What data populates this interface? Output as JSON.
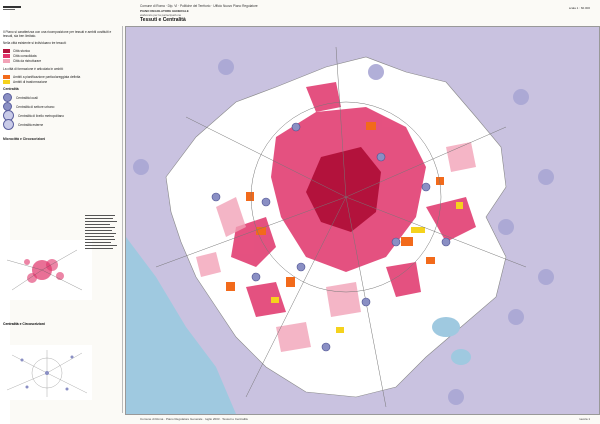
{
  "header": {
    "org": "Comune di Roma · Dip. VI · Politiche del Territorio · Ufficio Nuovo Piano Regolatore",
    "subtitle": "PIANO REGOLATORE GENERALE",
    "subtitle2": "elaborato per la partecipazione",
    "title": "Tessuti e Centralità",
    "scale": "scala 1 : 60.000"
  },
  "legend": {
    "intro": "Il Piano si caratterizza con una ricomposizione per tessuti e ambiti costituiti e tessuti, sia ben limitato.",
    "city_caption": "Nella città esistente si individuano tre tessuti:",
    "city_items": [
      {
        "label": "Città storica",
        "color": "#b3123c"
      },
      {
        "label": "Città consolidata",
        "color": "#e0336a"
      },
      {
        "label": "Città da ristrutturare",
        "color": "#f2a3b8"
      }
    ],
    "transform_caption": "La città di formazione è articolata in ambiti:",
    "transform_items": [
      {
        "label": "Ambiti a pianificazione particolareggiata definita",
        "color": "#f26a1b"
      },
      {
        "label": "Ambiti di trasformazione",
        "color": "#f5d21c"
      }
    ],
    "centrality_caption": "Centralità",
    "centrality_items": [
      {
        "label": "Centralità locali"
      },
      {
        "label": "Centralità di settore urbano"
      },
      {
        "label": "Centralità di livello metropolitano"
      },
      {
        "label": "Centralità esterne"
      }
    ],
    "section1_title": "Microcittà e Circoscrizioni",
    "section2_title": "Centralità e Circoscrizioni"
  },
  "map": {
    "water_color": "#9fc9e0",
    "land_color": "#ffffff",
    "outside_color": "#c9c2e0",
    "centrality_color": "#8a8fc4"
  },
  "footer": {
    "left": "Comune di Roma · Piano Regolatore Generale · luglio 2003 · Tessuti e Centralità",
    "right": "tavola 1"
  }
}
